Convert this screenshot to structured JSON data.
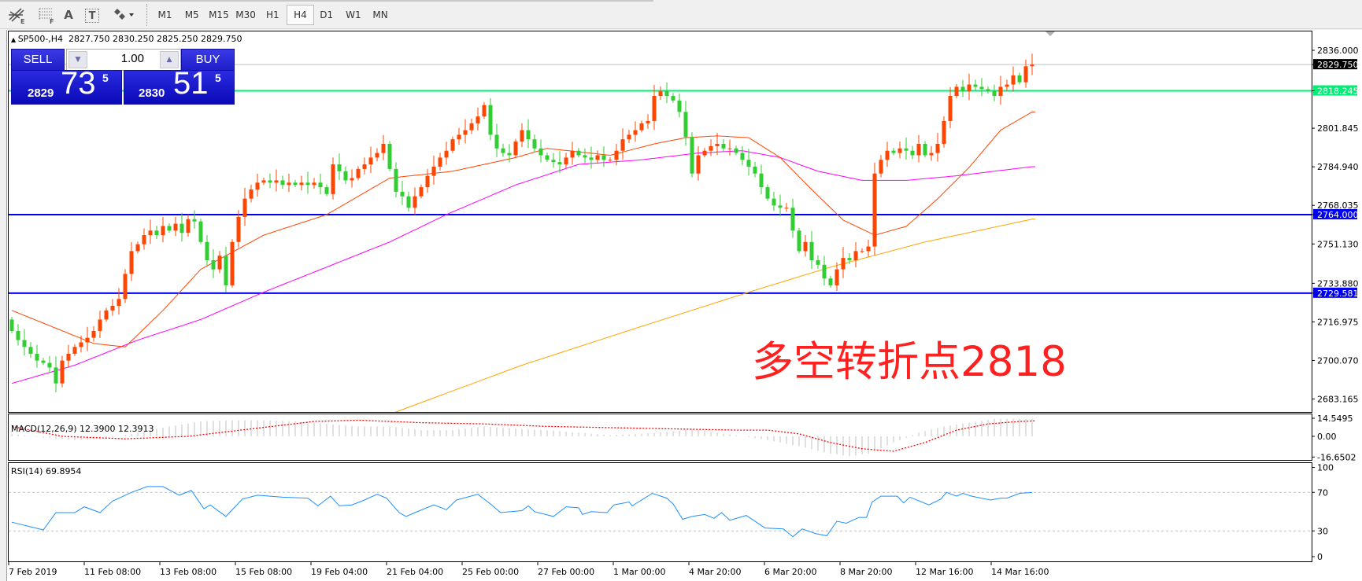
{
  "toolbar": {
    "tools": [
      {
        "icon": "fibonacci-expansion-icon",
        "label": "E"
      },
      {
        "icon": "fibonacci-fan-icon",
        "label": "F"
      },
      {
        "icon": "text-icon",
        "label": "A"
      },
      {
        "icon": "text-label-icon",
        "label": "T"
      },
      {
        "icon": "arrows-dropdown-icon"
      }
    ],
    "timeframes": [
      "M1",
      "M5",
      "M15",
      "M30",
      "H1",
      "H4",
      "D1",
      "W1",
      "MN"
    ],
    "active_timeframe": "H4"
  },
  "chart": {
    "symbol_info": "SP500-,H4  2827.750 2830.250 2825.250 2829.750",
    "macd_label": "MACD(12,26,9) 12.3900 12.3913",
    "rsi_label": "RSI(14) 69.8954"
  },
  "trade_panel": {
    "sell_label": "SELL",
    "buy_label": "BUY",
    "lot": "1.00",
    "sell_price": {
      "prefix": "2829",
      "big": "73",
      "sup": "5"
    },
    "buy_price": {
      "prefix": "2830",
      "big": "51",
      "sup": "5"
    }
  },
  "annotation": "多空转折点2818",
  "colors": {
    "bull": "#ff4500",
    "bear": "#32cd32",
    "ma_fast": "#ff4500",
    "ma_mid": "#ff00ff",
    "ma_slow": "#ffa500",
    "resistance": "#00ee76",
    "support": "#0000ee",
    "rsi": "#1e90ff",
    "macd_signal": "#ff0000",
    "macd_hist": "#c0c0c0"
  },
  "chart_data": {
    "type": "candlestick",
    "first_open": 2718,
    "close": [
      2713,
      2709,
      2706,
      2703,
      2700,
      2699,
      2697,
      2690,
      2700,
      2703,
      2706,
      2708,
      2710,
      2713,
      2718,
      2722,
      2724,
      2727,
      2738,
      2748,
      2751,
      2755,
      2757,
      2755,
      2759,
      2757,
      2760,
      2756,
      2762,
      2761,
      2752,
      2744,
      2740,
      2746,
      2733,
      2752,
      2763,
      2771,
      2775,
      2778,
      2779,
      2778,
      2779,
      2777,
      2778,
      2777,
      2778,
      2777,
      2778,
      2776,
      2773,
      2786,
      2783,
      2779,
      2780,
      2784,
      2786,
      2789,
      2791,
      2795,
      2784,
      2774,
      2772,
      2767,
      2772,
      2776,
      2781,
      2785,
      2789,
      2792,
      2797,
      2799,
      2801,
      2804,
      2807,
      2812,
      2799,
      2793,
      2791,
      2790,
      2796,
      2801,
      2797,
      2793,
      2790,
      2788,
      2787,
      2786,
      2789,
      2792,
      2790,
      2789,
      2788,
      2790,
      2788,
      2788,
      2792,
      2797,
      2799,
      2801,
      2804,
      2805,
      2816,
      2818,
      2816,
      2814,
      2809,
      2798,
      2782,
      2790,
      2792,
      2794,
      2795,
      2793,
      2793,
      2791,
      2788,
      2785,
      2782,
      2776,
      2771,
      2768,
      2767,
      2767,
      2757,
      2748,
      2752,
      2744,
      2742,
      2736,
      2733,
      2740,
      2745,
      2744,
      2748,
      2748,
      2750,
      2782,
      2788,
      2792,
      2791,
      2793,
      2792,
      2790,
      2795,
      2790,
      2791,
      2795,
      2805,
      2816,
      2820,
      2818,
      2821,
      2820,
      2819,
      2818,
      2816,
      2820,
      2821,
      2825,
      2822,
      2829,
      2829.75
    ],
    "ma_fast": [
      [
        0,
        2722
      ],
      [
        13,
        2707.5
      ],
      [
        18,
        2706
      ],
      [
        24,
        2722
      ],
      [
        30,
        2740
      ],
      [
        40,
        2755
      ],
      [
        50,
        2764
      ],
      [
        60,
        2780
      ],
      [
        70,
        2783
      ],
      [
        80,
        2789
      ],
      [
        85,
        2793
      ],
      [
        95,
        2790
      ],
      [
        102,
        2795
      ],
      [
        107,
        2797.7
      ],
      [
        112,
        2798.5
      ],
      [
        117,
        2797.7
      ],
      [
        122,
        2789
      ],
      [
        127,
        2775
      ],
      [
        132,
        2761.6
      ],
      [
        137,
        2755
      ],
      [
        142,
        2758.8
      ],
      [
        147,
        2770.9
      ],
      [
        152,
        2784.7
      ],
      [
        157,
        2801
      ],
      [
        162,
        2809
      ]
    ],
    "ma_mid": [
      [
        0,
        2690
      ],
      [
        10,
        2698
      ],
      [
        20,
        2709
      ],
      [
        30,
        2718
      ],
      [
        40,
        2730
      ],
      [
        50,
        2741
      ],
      [
        60,
        2752
      ],
      [
        69,
        2764
      ],
      [
        80,
        2777
      ],
      [
        90,
        2786
      ],
      [
        100,
        2788
      ],
      [
        109,
        2791
      ],
      [
        116,
        2792
      ],
      [
        122,
        2789
      ],
      [
        128,
        2783
      ],
      [
        135,
        2779
      ],
      [
        142,
        2779
      ],
      [
        150,
        2781
      ],
      [
        156,
        2783
      ],
      [
        162,
        2785
      ]
    ],
    "ma_slow": [
      [
        55,
        2672
      ],
      [
        61,
        2677.5
      ],
      [
        81,
        2698
      ],
      [
        100,
        2715
      ],
      [
        117,
        2730
      ],
      [
        130,
        2741
      ],
      [
        145,
        2752
      ],
      [
        162,
        2762
      ]
    ],
    "levels": [
      {
        "value": 2818.245,
        "label": "2818.245",
        "kind": "resistance"
      },
      {
        "value": 2764.0,
        "label": "2764.000",
        "kind": "support"
      },
      {
        "value": 2729.581,
        "label": "2729.581",
        "kind": "support"
      }
    ],
    "last_price": {
      "value": 2829.75,
      "label": "2829.750"
    },
    "y_ticks": [
      {
        "value": 2836.0,
        "label": "2836.000"
      },
      {
        "value": 2801.845,
        "label": "2801.845"
      },
      {
        "value": 2784.94,
        "label": "2784.940"
      },
      {
        "value": 2768.035,
        "label": "2768.035"
      },
      {
        "value": 2751.13,
        "label": "2751.130"
      },
      {
        "value": 2733.88,
        "label": "2733.880"
      },
      {
        "value": 2716.975,
        "label": "2716.975"
      },
      {
        "value": 2700.07,
        "label": "2700.070"
      },
      {
        "value": 2683.165,
        "label": "2683.165"
      }
    ],
    "x_ticks": [
      "7 Feb 2019",
      "11 Feb 08:00",
      "13 Feb 08:00",
      "15 Feb 08:00",
      "19 Feb 04:00",
      "21 Feb 04:00",
      "25 Feb 00:00",
      "27 Feb 00:00",
      "1 Mar 00:00",
      "4 Mar 20:00",
      "6 Mar 20:00",
      "8 Mar 20:00",
      "12 Mar 16:00",
      "14 Mar 16:00"
    ],
    "macd": {
      "ticks": [
        {
          "value": 14.5495,
          "label": "14.5495"
        },
        {
          "value": 0,
          "label": "0.00"
        },
        {
          "value": -16.6502,
          "label": "-16.6502"
        }
      ],
      "histogram": [
        [
          0,
          2
        ],
        [
          5,
          -1
        ],
        [
          10,
          -3
        ],
        [
          15,
          -2
        ],
        [
          20,
          3
        ],
        [
          25,
          8
        ],
        [
          30,
          12
        ],
        [
          35,
          13
        ],
        [
          40,
          13
        ],
        [
          45,
          12
        ],
        [
          50,
          10
        ],
        [
          55,
          8
        ],
        [
          60,
          8
        ],
        [
          65,
          5
        ],
        [
          70,
          5
        ],
        [
          75,
          8
        ],
        [
          80,
          6
        ],
        [
          85,
          5
        ],
        [
          90,
          3
        ],
        [
          95,
          1
        ],
        [
          100,
          2
        ],
        [
          105,
          4
        ],
        [
          108,
          6
        ],
        [
          112,
          3
        ],
        [
          116,
          0
        ],
        [
          120,
          -3
        ],
        [
          125,
          -8
        ],
        [
          130,
          -14
        ],
        [
          133,
          -16
        ],
        [
          136,
          -14
        ],
        [
          140,
          -5
        ],
        [
          144,
          3
        ],
        [
          148,
          8
        ],
        [
          152,
          11
        ],
        [
          156,
          14
        ],
        [
          160,
          14
        ],
        [
          162,
          14
        ]
      ],
      "signal": [
        [
          0,
          8
        ],
        [
          8,
          0
        ],
        [
          18,
          -2
        ],
        [
          28,
          0
        ],
        [
          38,
          6
        ],
        [
          48,
          12
        ],
        [
          55,
          13
        ],
        [
          65,
          11
        ],
        [
          75,
          10
        ],
        [
          85,
          8
        ],
        [
          95,
          7
        ],
        [
          105,
          6
        ],
        [
          115,
          5
        ],
        [
          120,
          5
        ],
        [
          125,
          2
        ],
        [
          130,
          -5
        ],
        [
          135,
          -10
        ],
        [
          140,
          -12
        ],
        [
          145,
          -5
        ],
        [
          150,
          5
        ],
        [
          155,
          10
        ],
        [
          160,
          12
        ],
        [
          162,
          12.4
        ]
      ]
    },
    "rsi": {
      "ticks": [
        {
          "value": 100,
          "label": "100"
        },
        {
          "value": 70,
          "label": "70"
        },
        {
          "value": 30,
          "label": "30"
        },
        {
          "value": 0,
          "label": "0"
        }
      ],
      "levels": [
        70,
        30
      ],
      "values": [
        [
          0,
          39
        ],
        [
          5,
          31
        ],
        [
          7,
          49
        ],
        [
          10,
          49
        ],
        [
          11.5,
          55
        ],
        [
          14,
          49
        ],
        [
          16,
          61
        ],
        [
          19,
          70
        ],
        [
          21.5,
          76
        ],
        [
          24,
          76
        ],
        [
          26.6,
          67
        ],
        [
          28.5,
          72
        ],
        [
          30.5,
          53
        ],
        [
          31.5,
          57
        ],
        [
          34,
          45
        ],
        [
          36.6,
          63
        ],
        [
          39,
          67
        ],
        [
          43,
          65
        ],
        [
          47,
          64
        ],
        [
          48.6,
          56
        ],
        [
          50.6,
          66
        ],
        [
          52,
          56
        ],
        [
          54,
          57
        ],
        [
          56,
          62
        ],
        [
          58,
          68
        ],
        [
          59.5,
          64
        ],
        [
          61.5,
          49
        ],
        [
          62.6,
          45
        ],
        [
          64,
          49
        ],
        [
          67,
          57
        ],
        [
          69,
          52
        ],
        [
          70.6,
          62
        ],
        [
          74,
          68
        ],
        [
          76,
          58
        ],
        [
          77.6,
          49
        ],
        [
          81,
          51
        ],
        [
          82,
          56
        ],
        [
          83,
          50
        ],
        [
          86,
          45
        ],
        [
          88,
          55
        ],
        [
          90,
          54
        ],
        [
          90.6,
          47
        ],
        [
          92,
          50
        ],
        [
          94.5,
          49
        ],
        [
          95.6,
          57
        ],
        [
          98,
          60
        ],
        [
          98.5,
          56
        ],
        [
          101.7,
          69
        ],
        [
          104,
          64
        ],
        [
          105,
          58
        ],
        [
          106.5,
          42
        ],
        [
          108,
          45
        ],
        [
          110,
          47
        ],
        [
          111.5,
          43
        ],
        [
          112.7,
          49
        ],
        [
          114,
          41
        ],
        [
          116.6,
          46
        ],
        [
          119.6,
          33
        ],
        [
          122.5,
          32
        ],
        [
          124,
          24
        ],
        [
          125.5,
          32
        ],
        [
          127.7,
          27
        ],
        [
          129.4,
          25
        ],
        [
          131,
          40
        ],
        [
          132.5,
          38
        ],
        [
          134.5,
          44
        ],
        [
          135.7,
          44
        ],
        [
          136.6,
          60
        ],
        [
          138,
          66
        ],
        [
          140.6,
          66
        ],
        [
          141.6,
          59
        ],
        [
          142.6,
          65
        ],
        [
          145.6,
          57
        ],
        [
          147.5,
          63
        ],
        [
          148.4,
          70
        ],
        [
          150,
          66
        ],
        [
          151,
          69
        ],
        [
          152.4,
          66
        ],
        [
          155.4,
          62
        ],
        [
          157,
          64
        ],
        [
          158,
          64
        ],
        [
          160,
          69
        ],
        [
          162,
          69.9
        ]
      ]
    }
  }
}
